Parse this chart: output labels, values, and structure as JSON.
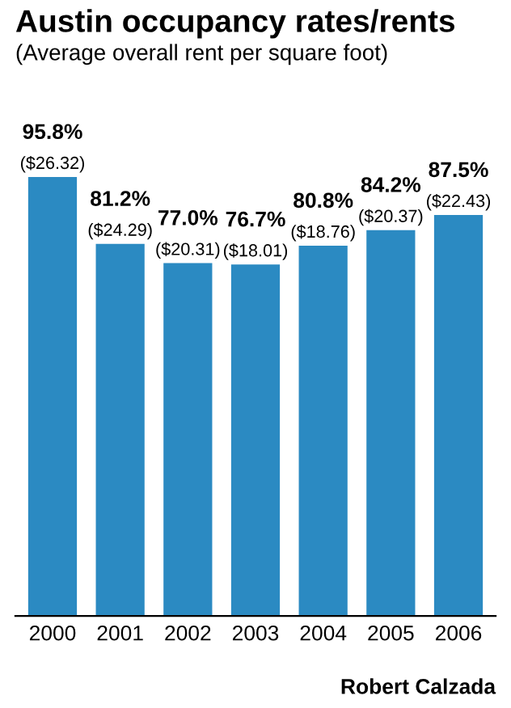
{
  "chart_data": {
    "type": "bar",
    "title": "Austin occupancy rates/rents",
    "subtitle": "(Average overall rent per square foot)",
    "categories": [
      "2000",
      "2001",
      "2002",
      "2003",
      "2004",
      "2005",
      "2006"
    ],
    "values": [
      95.8,
      81.2,
      77.0,
      76.7,
      80.8,
      84.2,
      87.5
    ],
    "value_labels": [
      "95.8%\n($26.32)",
      "81.2%\n($24.29)",
      "77.0%\n($20.31)",
      "76.7%\n($18.01)",
      "80.8%\n($18.76)",
      "84.2%\n($20.37)",
      "87.5%\n($22.43)"
    ],
    "color": "#2b8ac2",
    "grid": false,
    "annotations": [
      "Robert Calzada"
    ]
  }
}
